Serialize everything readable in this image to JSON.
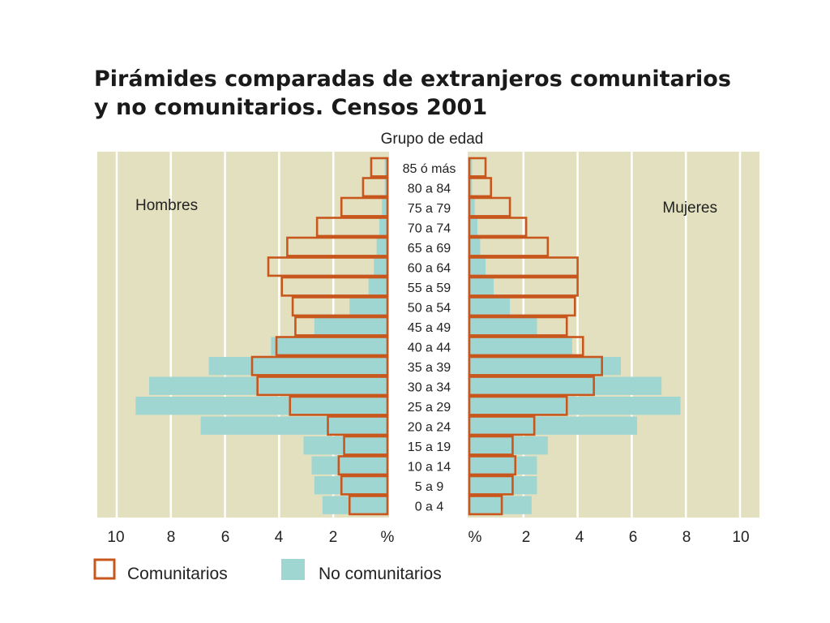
{
  "chart_data": {
    "type": "bar",
    "title_lines": [
      "Pirámides comparadas de extranjeros comunitarios",
      "y no comunitarios. Censos 2001"
    ],
    "center_label": "Grupo de edad",
    "left_label": "Hombres",
    "right_label": "Mujeres",
    "categories": [
      "85 ó más",
      "80 a 84",
      "75 a 79",
      "70 a 74",
      "65 a 69",
      "60 a 64",
      "55 a 59",
      "50 a 54",
      "45 a 49",
      "40 a 44",
      "35 a 39",
      "30 a 34",
      "25 a 29",
      "20 a 24",
      "15 a 19",
      "10 a 14",
      "5 a 9",
      "0 a 4"
    ],
    "x_ticks_left": [
      "10",
      "8",
      "6",
      "4",
      "2",
      "%"
    ],
    "x_ticks_right": [
      "%",
      "2",
      "4",
      "6",
      "8",
      "10"
    ],
    "xlim": [
      0,
      10
    ],
    "grid": true,
    "legend_position": "bottom-left",
    "colors": {
      "background": "#e3e0bf",
      "grid": "#ffffff",
      "comunitarios": "#c8571d",
      "no_comunitarios": "#9fd6d2"
    },
    "series": [
      {
        "name": "Comunitarios",
        "style": "outline",
        "hombres": [
          0.6,
          0.9,
          1.7,
          2.6,
          3.7,
          4.4,
          3.9,
          3.5,
          3.4,
          4.1,
          5.0,
          4.8,
          3.6,
          2.2,
          1.6,
          1.8,
          1.7,
          1.4
        ],
        "mujeres": [
          0.6,
          0.8,
          1.5,
          2.1,
          2.9,
          4.0,
          4.0,
          3.9,
          3.6,
          4.2,
          4.9,
          4.6,
          3.6,
          2.4,
          1.6,
          1.7,
          1.6,
          1.2
        ]
      },
      {
        "name": "No comunitarios",
        "style": "fill",
        "hombres": [
          0.1,
          0.1,
          0.2,
          0.3,
          0.4,
          0.5,
          0.7,
          1.4,
          2.7,
          4.3,
          6.6,
          8.8,
          9.3,
          6.9,
          3.1,
          2.8,
          2.7,
          2.4
        ],
        "mujeres": [
          0.1,
          0.1,
          0.2,
          0.3,
          0.4,
          0.6,
          0.9,
          1.5,
          2.5,
          3.8,
          5.6,
          7.1,
          7.8,
          6.2,
          2.9,
          2.5,
          2.5,
          2.3
        ]
      }
    ]
  }
}
